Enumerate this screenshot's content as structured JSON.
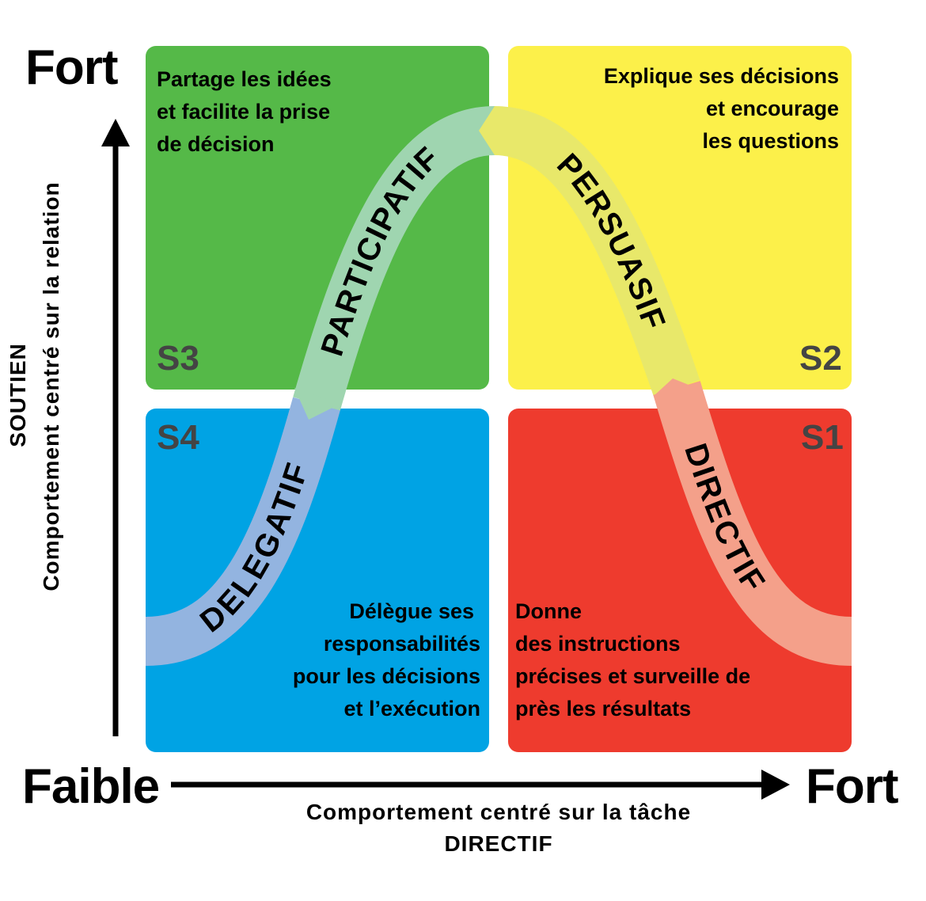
{
  "axes": {
    "y_high": "Fort",
    "y_title": "SOUTIEN",
    "y_subtitle": "Comportement centré sur la relation",
    "x_low": "Faible",
    "x_high": "Fort",
    "x_subtitle": "Comportement centré sur la tâche",
    "x_title": "DIRECTIF"
  },
  "quadrants": {
    "s3": {
      "id": "S3",
      "color": "#55b948",
      "lines": [
        "Partage les idées",
        "et facilite la prise",
        "de décision"
      ]
    },
    "s2": {
      "id": "S2",
      "color": "#fcf04a",
      "lines": [
        "Explique ses décisions",
        "et encourage",
        "les questions"
      ]
    },
    "s4": {
      "id": "S4",
      "color": "#00a3e4",
      "lines": [
        "Délègue ses",
        "responsabilités",
        "pour les décisions",
        "et l’exécution"
      ]
    },
    "s1": {
      "id": "S1",
      "color": "#ee3b2e",
      "lines": [
        "Donne",
        "des instructions",
        "précises et surveille de",
        "près les résultats"
      ]
    }
  },
  "curve": {
    "delegatif": {
      "label": "DELEGATIF",
      "color": "#93b4e0"
    },
    "participatif": {
      "label": "PARTICIPATIF",
      "color": "#9fd5b0"
    },
    "persuasif": {
      "label": "PERSUASIF",
      "color": "#e8e86a"
    },
    "directif": {
      "label": "DIRECTIF",
      "color": "#f4a08a"
    }
  }
}
